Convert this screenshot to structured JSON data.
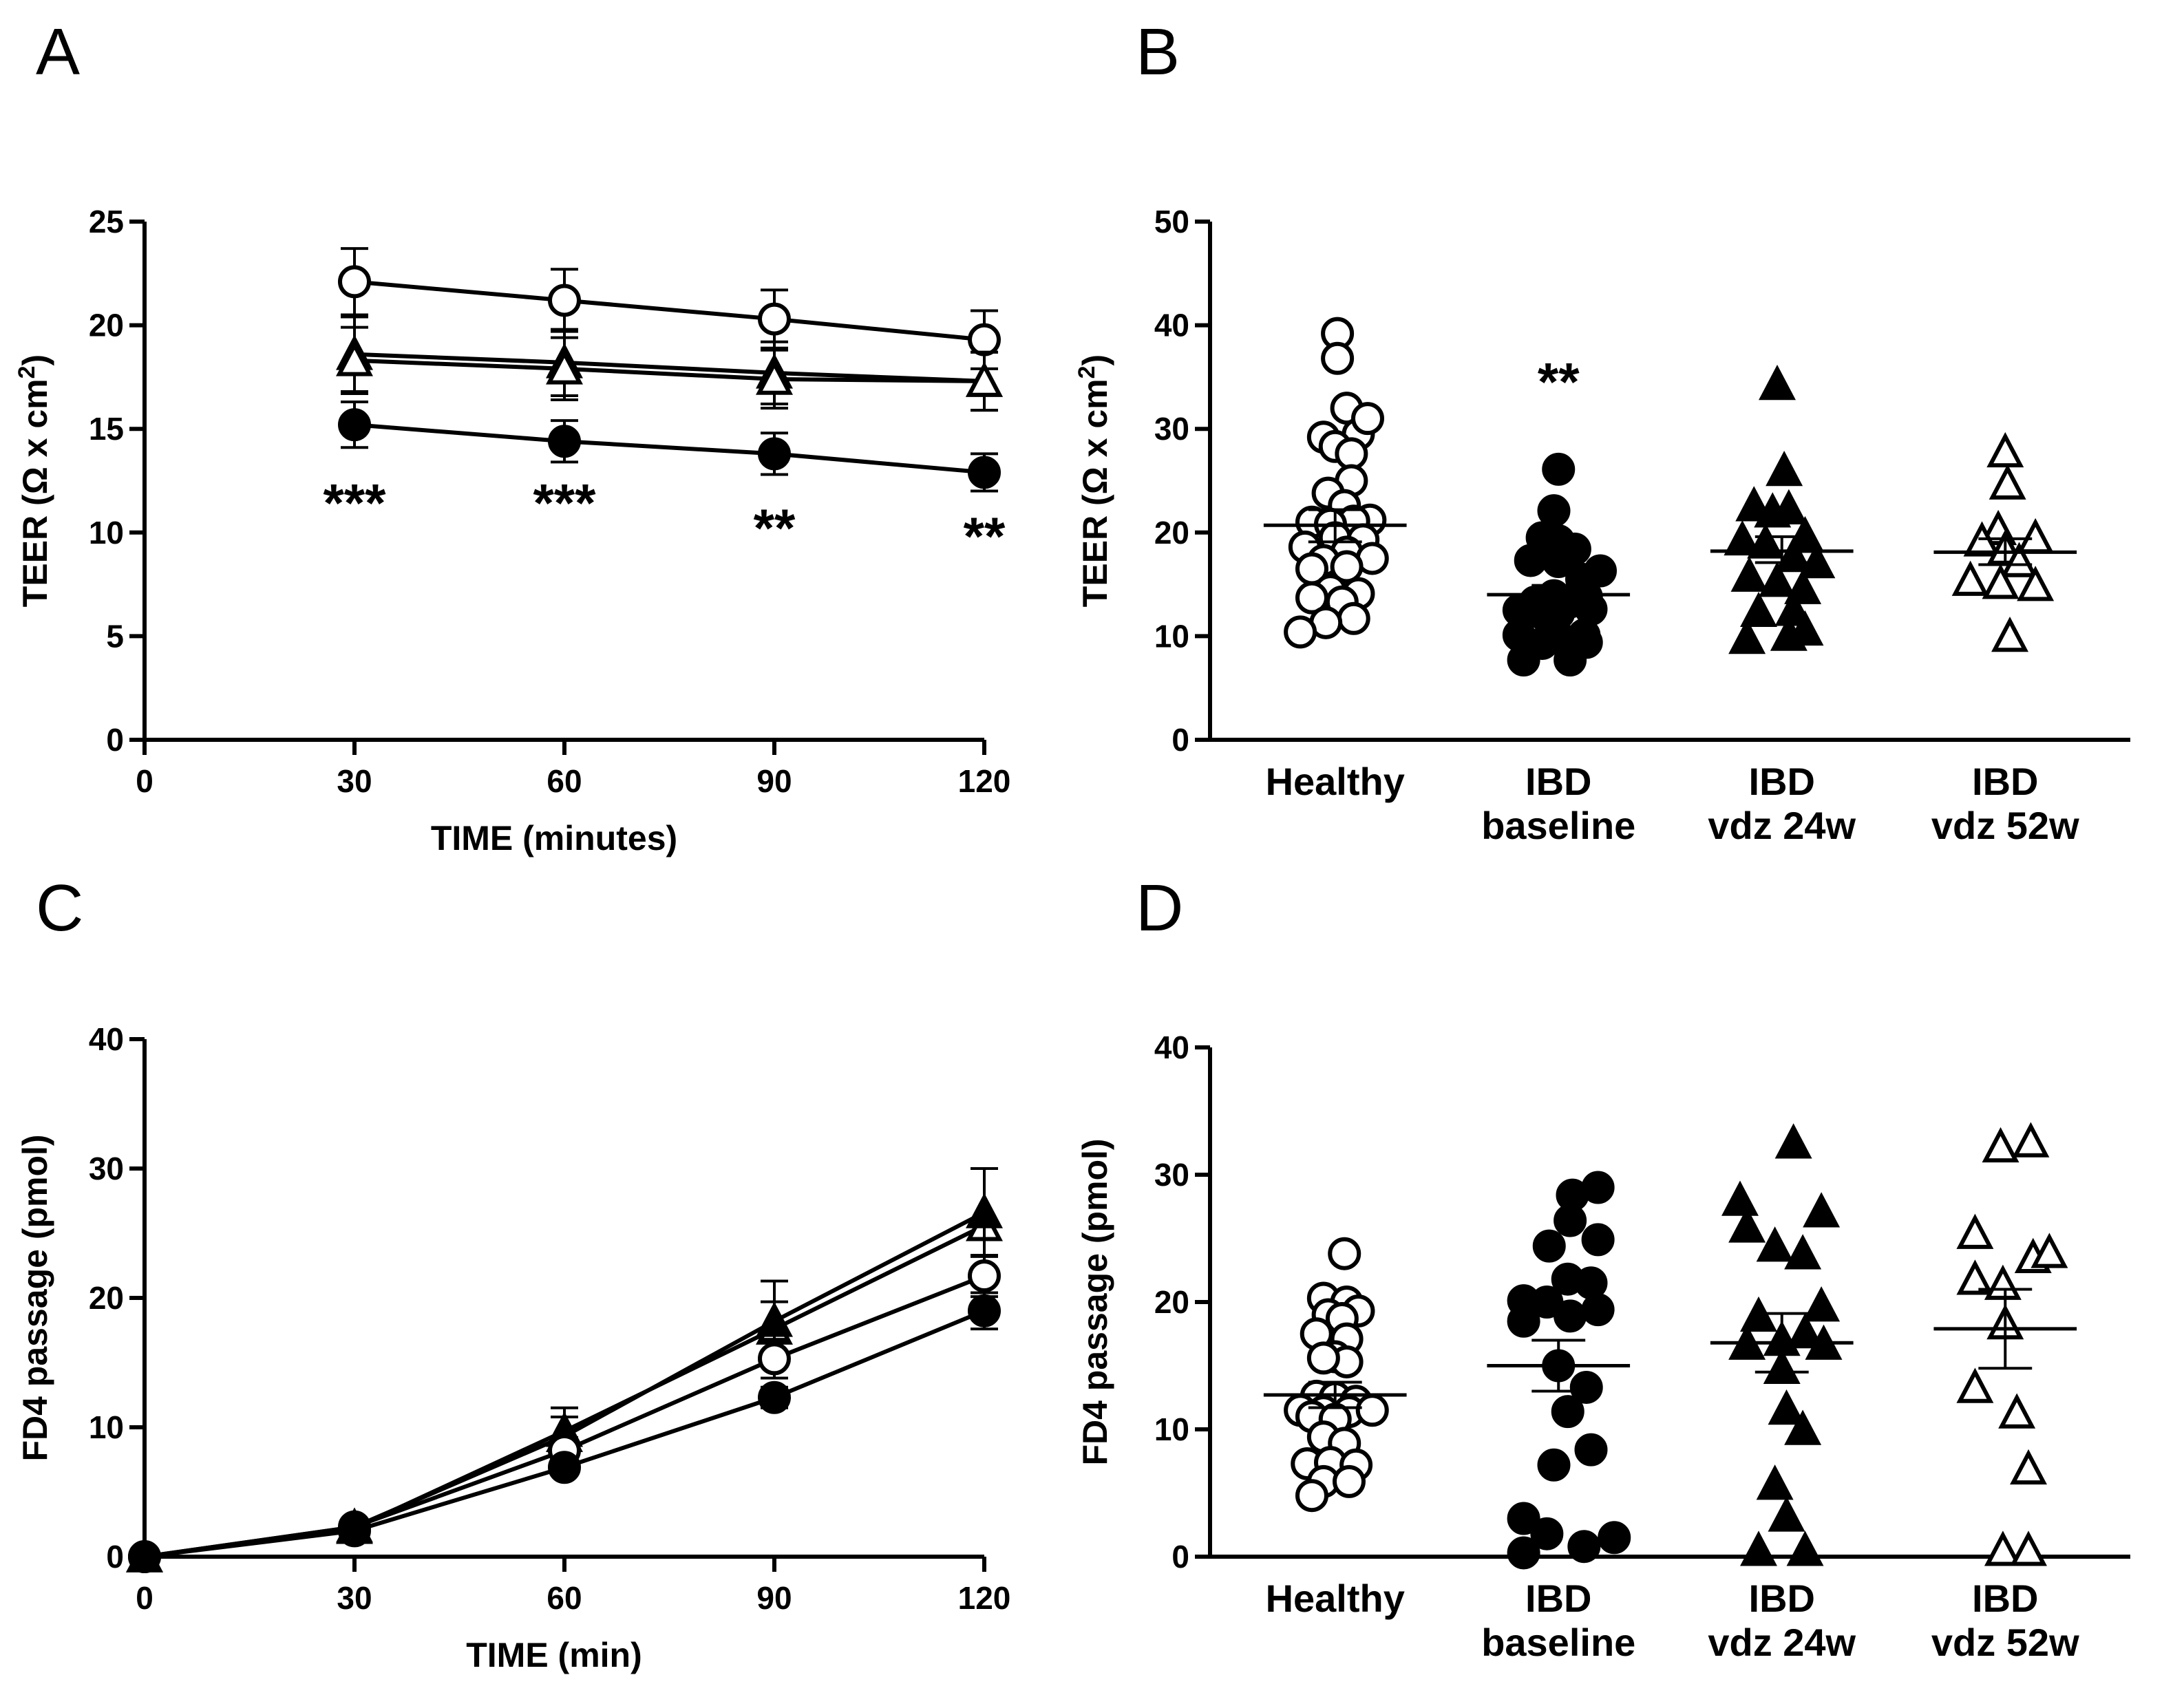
{
  "figure": {
    "panels": [
      "A",
      "B",
      "C",
      "D"
    ]
  },
  "chart_data": [
    {
      "panel": "A",
      "type": "line",
      "xlabel": "TIME (minutes)",
      "ylabel": "TEER (Ω x cm²)",
      "ylabel_parts": [
        "TEER (Ω x cm",
        "2",
        ")"
      ],
      "xlim": [
        0,
        120
      ],
      "ylim": [
        0,
        25
      ],
      "xticks": [
        "0",
        "30",
        "60",
        "90",
        "120"
      ],
      "yticks": [
        "0",
        "5",
        "10",
        "15",
        "20",
        "25"
      ],
      "x": [
        30,
        60,
        90,
        120
      ],
      "series": [
        {
          "name": "Healthy",
          "marker": "open-circle",
          "values": [
            22.1,
            21.2,
            20.3,
            19.3
          ],
          "err": [
            1.6,
            1.5,
            1.4,
            1.4
          ]
        },
        {
          "name": "IBD vdz 24w",
          "marker": "filled-triangle",
          "values": [
            18.6,
            18.2,
            17.7,
            17.3
          ],
          "err": [
            1.8,
            1.6,
            1.5,
            1.4
          ]
        },
        {
          "name": "IBD vdz 52w",
          "marker": "open-triangle",
          "values": [
            18.3,
            17.9,
            17.4,
            17.3
          ],
          "err": [
            1.6,
            1.5,
            1.4,
            1.4
          ]
        },
        {
          "name": "IBD baseline",
          "marker": "filled-circle",
          "values": [
            15.2,
            14.4,
            13.8,
            12.9
          ],
          "err": [
            1.1,
            1.0,
            1.0,
            0.9
          ]
        }
      ],
      "annotations": [
        {
          "x": 30,
          "y": 11.4,
          "text": "***"
        },
        {
          "x": 60,
          "y": 11.4,
          "text": "***"
        },
        {
          "x": 90,
          "y": 10.2,
          "text": "**"
        },
        {
          "x": 120,
          "y": 9.8,
          "text": "**"
        }
      ]
    },
    {
      "panel": "B",
      "type": "scatter",
      "xlabel": "",
      "ylabel": "TEER (Ω x cm²)",
      "ylabel_parts": [
        "TEER (Ω x cm",
        "2",
        ")"
      ],
      "ylim": [
        0,
        50
      ],
      "yticks": [
        "0",
        "10",
        "20",
        "30",
        "40",
        "50"
      ],
      "categories": [
        [
          "Healthy"
        ],
        [
          "IBD",
          "baseline"
        ],
        [
          "IBD",
          "vdz 24w"
        ],
        [
          "IBD",
          "vdz 52w"
        ]
      ],
      "groups": [
        {
          "name": "Healthy",
          "marker": "open-circle",
          "mean": 20.7,
          "sem_low": 19.1,
          "sem_high": 22.2,
          "points": [
            [
              0.02,
              39.2
            ],
            [
              0.02,
              36.8
            ],
            [
              0.1,
              32.0
            ],
            [
              0.2,
              29.5
            ],
            [
              0.28,
              31.0
            ],
            [
              -0.1,
              29.2
            ],
            [
              0.0,
              28.3
            ],
            [
              0.14,
              27.6
            ],
            [
              0.14,
              25.0
            ],
            [
              -0.06,
              23.8
            ],
            [
              0.08,
              22.6
            ],
            [
              0.3,
              21.2
            ],
            [
              -0.2,
              21.0
            ],
            [
              0.16,
              21.1
            ],
            [
              -0.04,
              20.8
            ],
            [
              0.0,
              19.5
            ],
            [
              0.24,
              19.3
            ],
            [
              -0.26,
              18.6
            ],
            [
              0.1,
              18.1
            ],
            [
              -0.1,
              17.3
            ],
            [
              0.32,
              17.5
            ],
            [
              -0.2,
              16.5
            ],
            [
              0.1,
              16.7
            ],
            [
              -0.04,
              14.4
            ],
            [
              0.2,
              14.1
            ],
            [
              -0.2,
              13.7
            ],
            [
              0.06,
              13.3
            ],
            [
              0.16,
              11.7
            ],
            [
              -0.08,
              11.3
            ],
            [
              -0.3,
              10.4
            ]
          ]
        },
        {
          "name": "IBD baseline",
          "marker": "filled-circle",
          "mean": 14.0,
          "sem_low": 13.1,
          "sem_high": 14.9,
          "points": [
            [
              0.0,
              26.1
            ],
            [
              -0.04,
              22.1
            ],
            [
              -0.14,
              19.5
            ],
            [
              0.0,
              19.2
            ],
            [
              0.14,
              18.4
            ],
            [
              -0.24,
              17.3
            ],
            [
              0.0,
              17.2
            ],
            [
              0.36,
              16.3
            ],
            [
              0.2,
              15.5
            ],
            [
              -0.04,
              13.9
            ],
            [
              -0.2,
              13.3
            ],
            [
              0.1,
              13.3
            ],
            [
              0.24,
              13.8
            ],
            [
              -0.34,
              12.5
            ],
            [
              -0.14,
              12.2
            ],
            [
              0.28,
              12.6
            ],
            [
              0.0,
              12.2
            ],
            [
              -0.04,
              10.9
            ],
            [
              0.22,
              10.1
            ],
            [
              -0.34,
              10.1
            ],
            [
              0.0,
              9.9
            ],
            [
              0.24,
              9.4
            ],
            [
              -0.14,
              9.3
            ],
            [
              -0.3,
              7.7
            ],
            [
              0.1,
              7.7
            ]
          ]
        },
        {
          "name": "IBD vdz 24w",
          "marker": "filled-triangle",
          "mean": 18.2,
          "sem_low": 17.1,
          "sem_high": 19.6,
          "points": [
            [
              -0.04,
              34.3
            ],
            [
              0.02,
              26.0
            ],
            [
              -0.24,
              22.6
            ],
            [
              -0.08,
              22.0
            ],
            [
              0.06,
              22.3
            ],
            [
              -0.34,
              19.3
            ],
            [
              -0.14,
              19.0
            ],
            [
              0.2,
              19.7
            ],
            [
              0.1,
              17.7
            ],
            [
              0.3,
              17.1
            ],
            [
              -0.28,
              15.8
            ],
            [
              -0.04,
              15.3
            ],
            [
              0.18,
              14.6
            ],
            [
              -0.2,
              12.4
            ],
            [
              0.1,
              12.5
            ],
            [
              -0.3,
              9.8
            ],
            [
              0.06,
              10.1
            ],
            [
              0.2,
              10.6
            ]
          ]
        },
        {
          "name": "IBD vdz 52w",
          "marker": "open-triangle",
          "mean": 18.1,
          "sem_low": 16.9,
          "sem_high": 19.4,
          "points": [
            [
              0.0,
              27.8
            ],
            [
              0.02,
              24.7
            ],
            [
              -0.06,
              20.3
            ],
            [
              0.26,
              19.5
            ],
            [
              -0.2,
              19.2
            ],
            [
              0.0,
              18.4
            ],
            [
              0.12,
              17.2
            ],
            [
              -0.3,
              15.4
            ],
            [
              -0.04,
              15.1
            ],
            [
              0.26,
              14.9
            ],
            [
              0.04,
              10.0
            ]
          ]
        }
      ],
      "annotations": [
        {
          "group": 1,
          "y": 34.5,
          "text": "**"
        }
      ]
    },
    {
      "panel": "C",
      "type": "line",
      "xlabel": "TIME (min)",
      "ylabel": "FD4 passage (pmol)",
      "xlim": [
        0,
        120
      ],
      "ylim": [
        0,
        40
      ],
      "xticks": [
        "0",
        "30",
        "60",
        "90",
        "120"
      ],
      "yticks": [
        "0",
        "10",
        "20",
        "30",
        "40"
      ],
      "x": [
        0,
        30,
        60,
        90,
        120
      ],
      "series": [
        {
          "name": "IBD vdz 52w",
          "marker": "open-triangle",
          "values": [
            0,
            2.2,
            9.7,
            17.6,
            25.6
          ],
          "err": [
            0,
            0.3,
            1.8,
            2.1,
            4.4
          ]
        },
        {
          "name": "IBD vdz 24w",
          "marker": "filled-triangle",
          "values": [
            0,
            2.3,
            9.3,
            18.2,
            26.6
          ],
          "err": [
            0,
            0.3,
            1.5,
            3.1,
            3.4
          ]
        },
        {
          "name": "Healthy",
          "marker": "open-circle",
          "values": [
            0,
            2.3,
            8.2,
            15.3,
            21.7
          ],
          "err": [
            0,
            0.3,
            1.0,
            1.5,
            1.6
          ]
        },
        {
          "name": "IBD baseline",
          "marker": "filled-circle",
          "values": [
            0,
            2.0,
            6.9,
            12.3,
            19.0
          ],
          "err": [
            0,
            0.3,
            0.6,
            0.8,
            1.4
          ]
        }
      ]
    },
    {
      "panel": "D",
      "type": "scatter",
      "xlabel": "",
      "ylabel": "FD4 passage (pmol)",
      "ylim": [
        0,
        40
      ],
      "yticks": [
        "0",
        "10",
        "20",
        "30",
        "40"
      ],
      "categories": [
        [
          "Healthy"
        ],
        [
          "IBD",
          "baseline"
        ],
        [
          "IBD",
          "vdz 24w"
        ],
        [
          "IBD",
          "vdz 52w"
        ]
      ],
      "groups": [
        {
          "name": "Healthy",
          "marker": "open-circle",
          "mean": 12.7,
          "sem_low": 11.7,
          "sem_high": 13.7,
          "points": [
            [
              0.08,
              23.8
            ],
            [
              -0.1,
              20.3
            ],
            [
              0.1,
              20.0
            ],
            [
              0.2,
              19.3
            ],
            [
              -0.06,
              19.0
            ],
            [
              0.06,
              18.7
            ],
            [
              -0.16,
              17.5
            ],
            [
              0.1,
              17.1
            ],
            [
              0.0,
              15.7
            ],
            [
              0.1,
              15.3
            ],
            [
              -0.1,
              15.6
            ],
            [
              -0.16,
              12.6
            ],
            [
              0.0,
              12.5
            ],
            [
              0.18,
              12.2
            ],
            [
              -0.3,
              11.5
            ],
            [
              -0.1,
              11.4
            ],
            [
              0.12,
              11.4
            ],
            [
              0.32,
              11.5
            ],
            [
              -0.2,
              11.0
            ],
            [
              0.0,
              10.8
            ],
            [
              -0.1,
              9.4
            ],
            [
              0.08,
              8.9
            ],
            [
              -0.24,
              7.3
            ],
            [
              -0.04,
              7.4
            ],
            [
              0.18,
              7.2
            ],
            [
              -0.1,
              5.9
            ],
            [
              0.12,
              5.9
            ],
            [
              -0.2,
              4.8
            ]
          ]
        },
        {
          "name": "IBD baseline",
          "marker": "filled-circle",
          "mean": 15.0,
          "sem_low": 13.0,
          "sem_high": 17.0,
          "points": [
            [
              0.34,
              29.0
            ],
            [
              0.12,
              28.4
            ],
            [
              0.1,
              26.4
            ],
            [
              0.34,
              24.9
            ],
            [
              -0.08,
              24.4
            ],
            [
              0.08,
              21.8
            ],
            [
              0.28,
              21.5
            ],
            [
              -0.3,
              20.1
            ],
            [
              -0.1,
              20.0
            ],
            [
              0.34,
              19.4
            ],
            [
              -0.3,
              18.5
            ],
            [
              0.1,
              18.9
            ],
            [
              0.0,
              15.0
            ],
            [
              0.24,
              13.3
            ],
            [
              0.08,
              11.4
            ],
            [
              0.28,
              8.4
            ],
            [
              -0.04,
              7.2
            ],
            [
              -0.3,
              3.0
            ],
            [
              -0.1,
              1.8
            ],
            [
              0.22,
              0.8
            ],
            [
              0.48,
              1.5
            ],
            [
              -0.3,
              0.3
            ]
          ]
        },
        {
          "name": "IBD vdz 24w",
          "marker": "filled-triangle",
          "mean": 16.8,
          "sem_low": 14.5,
          "sem_high": 19.1,
          "points": [
            [
              0.1,
              32.5
            ],
            [
              -0.36,
              28.0
            ],
            [
              0.34,
              27.1
            ],
            [
              -0.3,
              25.9
            ],
            [
              -0.06,
              24.4
            ],
            [
              0.18,
              23.8
            ],
            [
              0.34,
              19.7
            ],
            [
              -0.2,
              18.9
            ],
            [
              0.2,
              17.6
            ],
            [
              -0.3,
              16.7
            ],
            [
              0.0,
              17.0
            ],
            [
              0.36,
              16.7
            ],
            [
              0.0,
              14.8
            ],
            [
              0.04,
              11.6
            ],
            [
              0.18,
              10.0
            ],
            [
              -0.06,
              5.7
            ],
            [
              0.04,
              3.2
            ],
            [
              -0.2,
              0.5
            ],
            [
              0.2,
              0.5
            ]
          ]
        },
        {
          "name": "IBD vdz 52w",
          "marker": "open-triangle",
          "mean": 17.9,
          "sem_low": 14.8,
          "sem_high": 21.0,
          "points": [
            [
              -0.04,
              32.2
            ],
            [
              0.22,
              32.6
            ],
            [
              -0.26,
              25.4
            ],
            [
              0.24,
              23.5
            ],
            [
              0.38,
              23.9
            ],
            [
              -0.26,
              21.8
            ],
            [
              -0.02,
              21.4
            ],
            [
              0.0,
              18.3
            ],
            [
              -0.26,
              13.3
            ],
            [
              0.1,
              11.3
            ],
            [
              0.2,
              6.9
            ],
            [
              -0.02,
              0.5
            ],
            [
              0.2,
              0.5
            ]
          ]
        }
      ]
    }
  ]
}
